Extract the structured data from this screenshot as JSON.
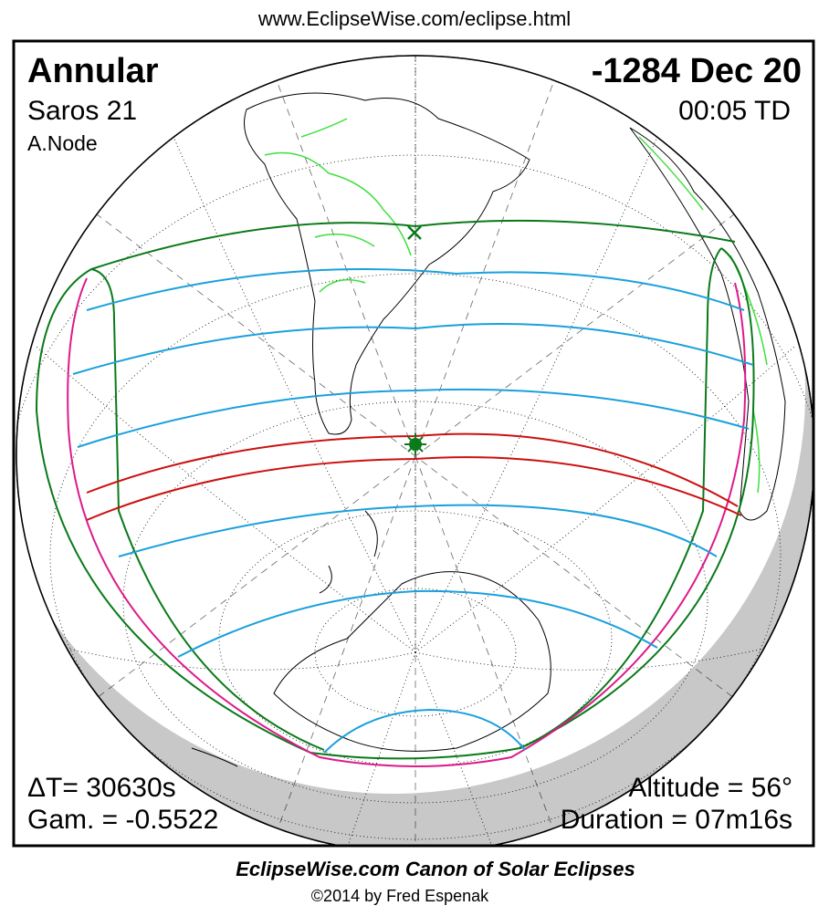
{
  "header": {
    "url": "www.EclipseWise.com/eclipse.html"
  },
  "eclipse": {
    "type": "Annular",
    "saros": "Saros  21",
    "node": "A.Node",
    "date": "-1284 Dec 20",
    "time": "00:05 TD",
    "delta_t": "ΔT=  30630s",
    "gamma": "Gam. = -0.5522",
    "altitude": "Altitude = 56°",
    "duration": "Duration = 07m16s"
  },
  "footer": {
    "title": "EclipseWise.com Canon of Solar Eclipses",
    "credit": "©2014 by Fred Espenak"
  }
}
